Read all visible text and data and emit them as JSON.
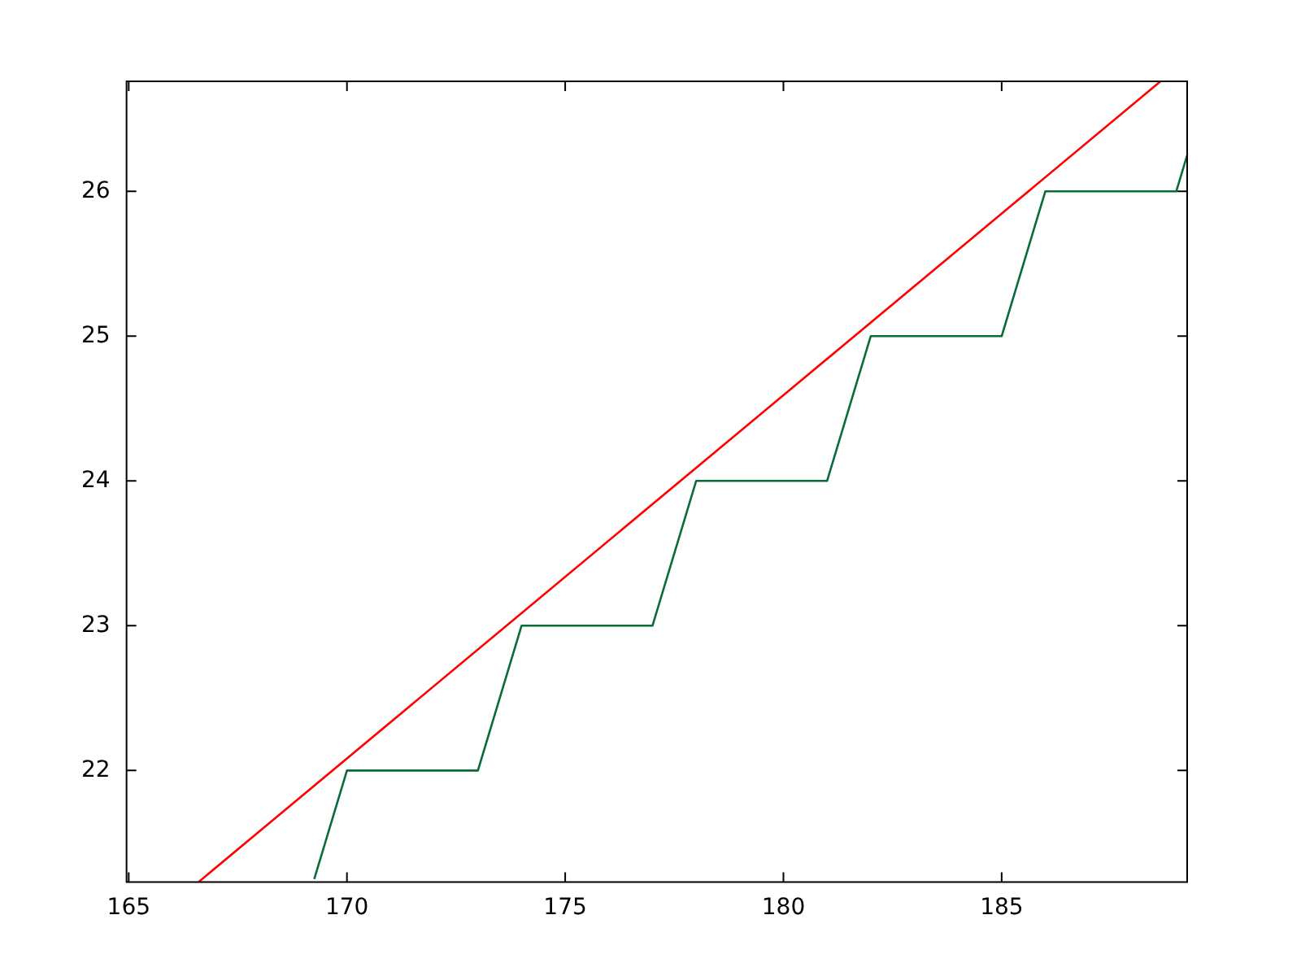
{
  "chart_data": {
    "type": "line",
    "xlim": [
      164.95,
      189.25
    ],
    "ylim": [
      21.23,
      26.76
    ],
    "xticks": [
      165,
      170,
      175,
      180,
      185
    ],
    "yticks": [
      22,
      23,
      24,
      25,
      26
    ],
    "grid": false,
    "legend": false,
    "marker": "none",
    "line_style": "solid",
    "series": [
      {
        "color": "#ff0000",
        "x": [
          166.6,
          188.64
        ],
        "values": [
          21.23,
          26.76
        ]
      },
      {
        "color": "#0a6b3a",
        "x": [
          169.25,
          170,
          173,
          174,
          177,
          178,
          181,
          182,
          185,
          186,
          189,
          189.25
        ],
        "values": [
          21.25,
          22,
          22,
          23,
          23,
          24,
          24,
          25,
          25,
          26,
          26,
          26.25
        ]
      }
    ]
  }
}
